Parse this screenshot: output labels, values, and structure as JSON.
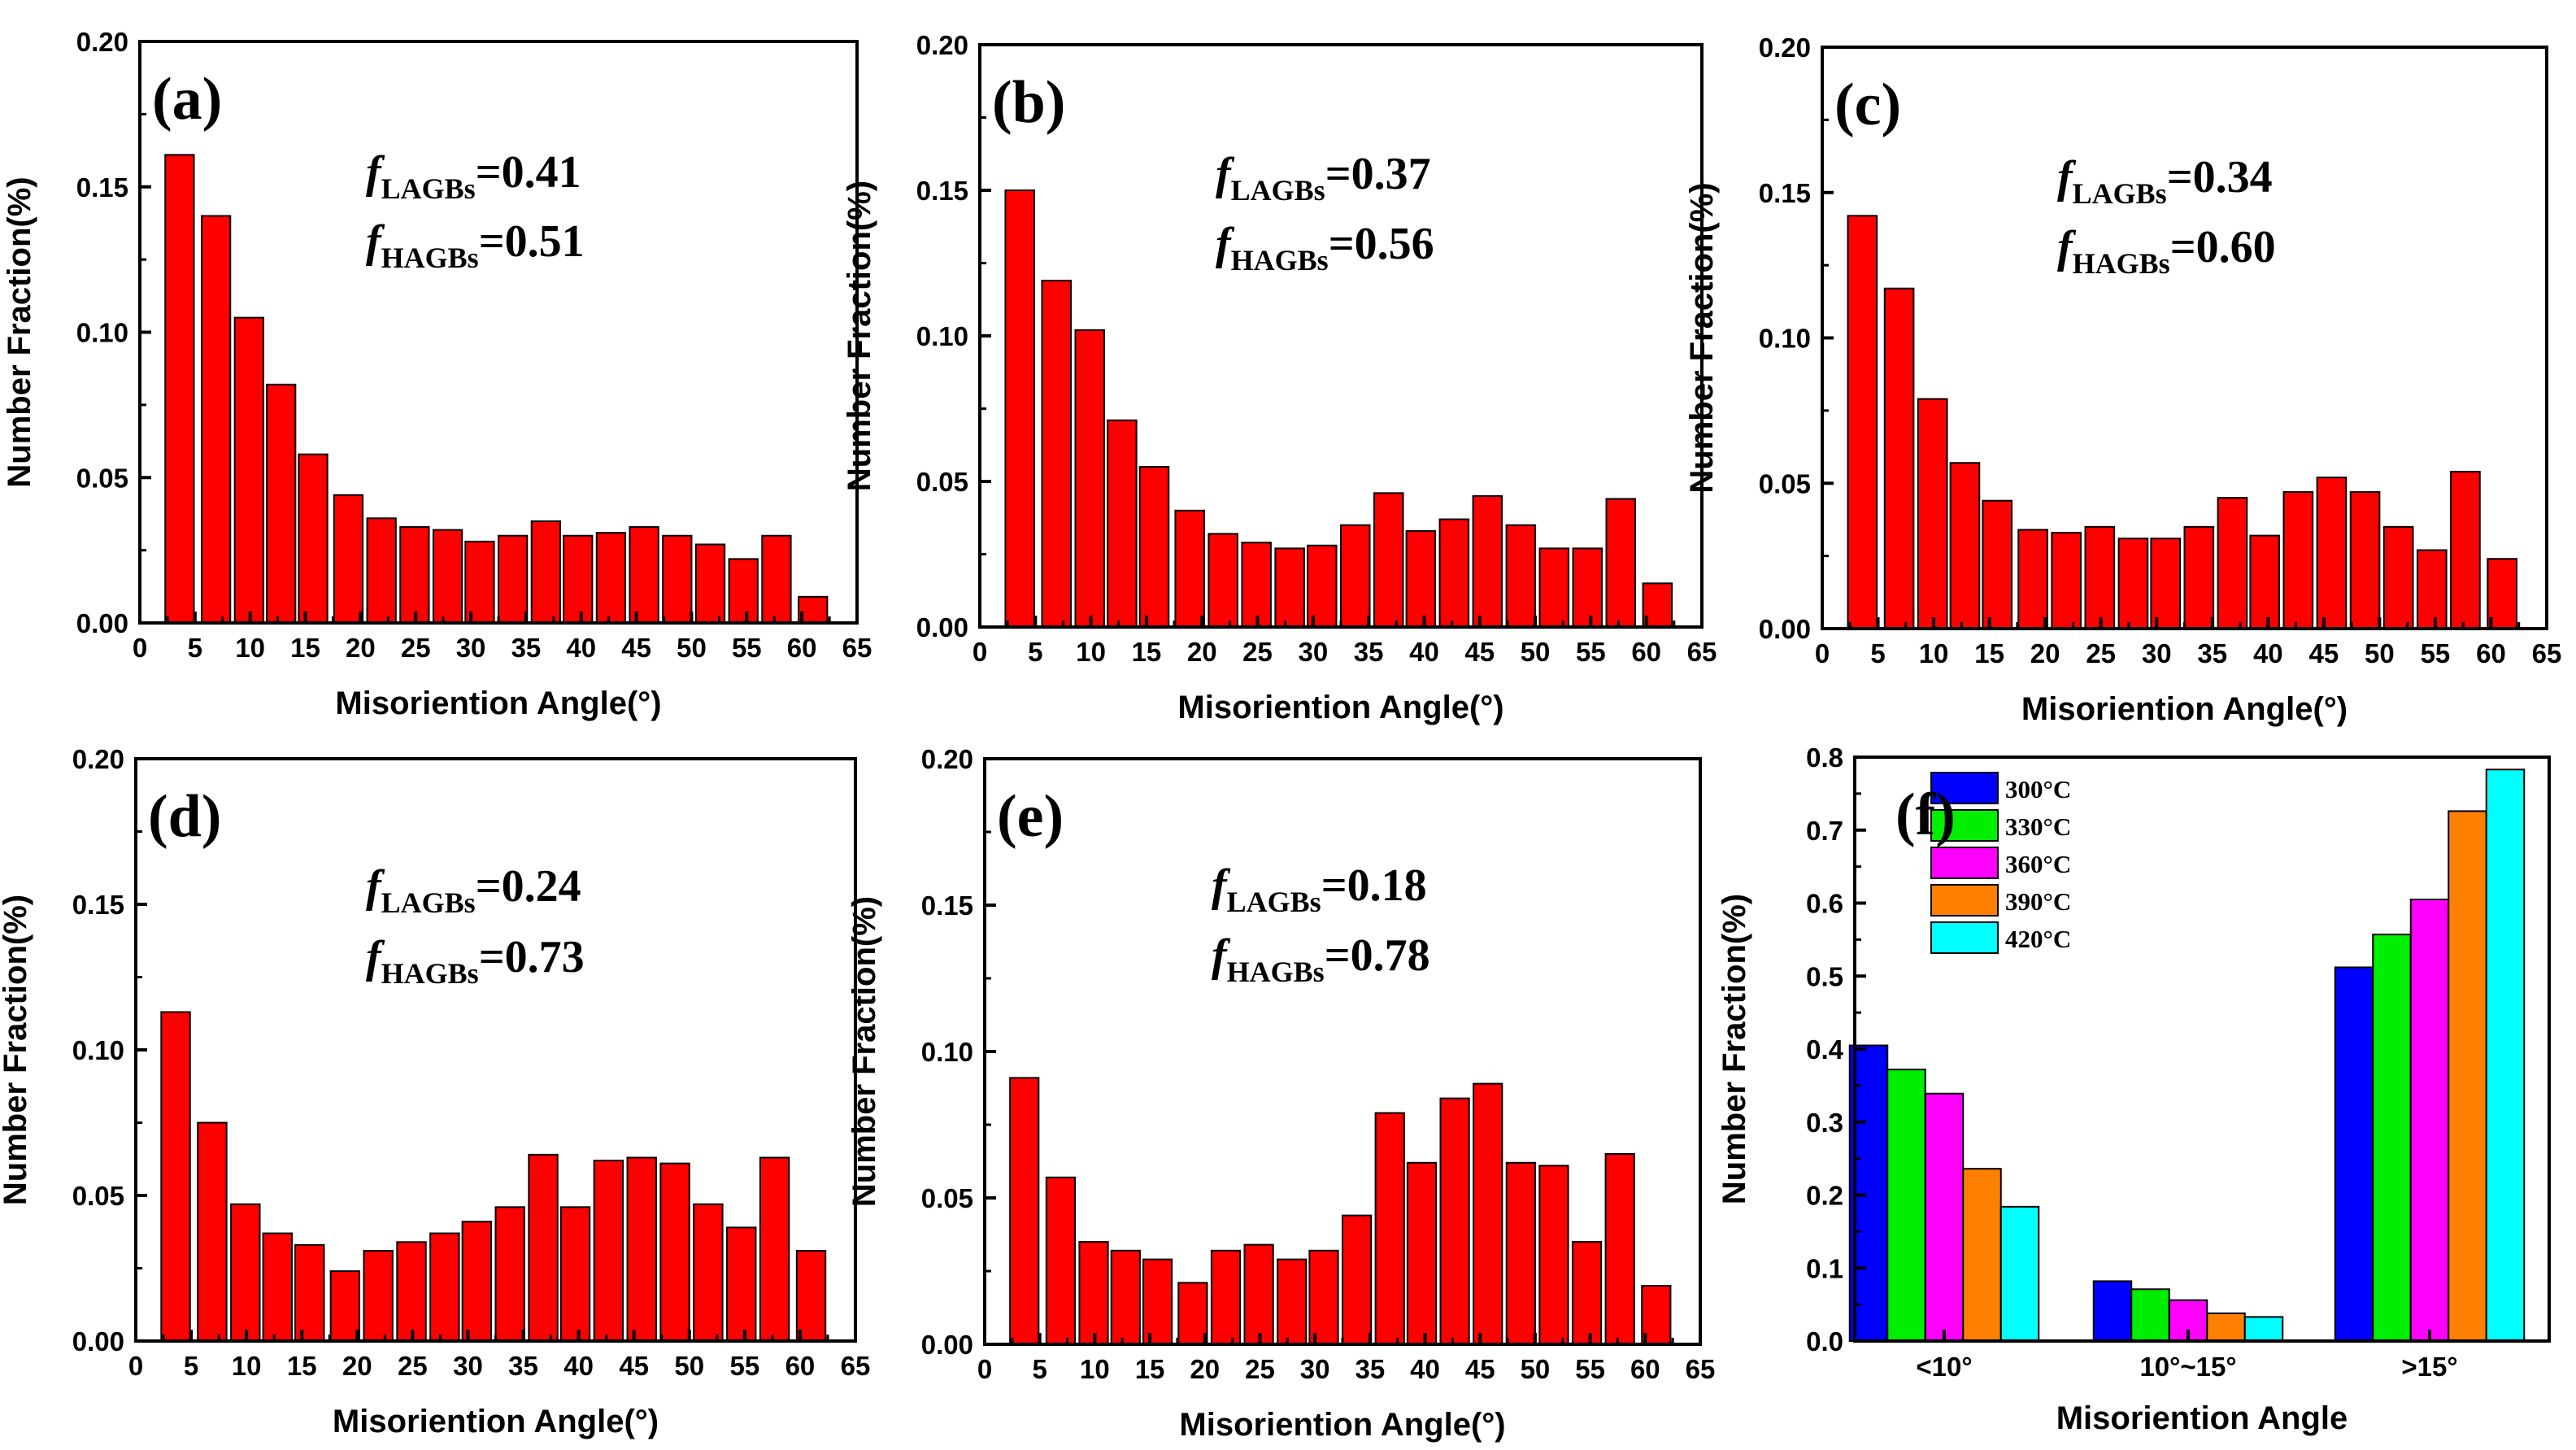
{
  "chart_data": [
    {
      "panel": "(a)",
      "type": "bar",
      "xlabel": "Misoriention Angle(°)",
      "ylabel": "Number Fraction(%)",
      "xlim": [
        0,
        65
      ],
      "ylim": [
        0,
        0.2
      ],
      "xticks": [
        "0",
        "5",
        "10",
        "15",
        "20",
        "25",
        "30",
        "35",
        "40",
        "45",
        "50",
        "55",
        "60",
        "65"
      ],
      "yticks": [
        "0.00",
        "0.05",
        "0.10",
        "0.15",
        "0.20"
      ],
      "bar_centers": [
        3.6,
        6.9,
        9.9,
        12.8,
        15.7,
        18.9,
        21.9,
        24.9,
        27.9,
        30.8,
        33.8,
        36.8,
        39.7,
        42.7,
        45.7,
        48.7,
        51.7,
        54.7,
        57.7,
        61.0
      ],
      "values": [
        0.161,
        0.14,
        0.105,
        0.082,
        0.058,
        0.044,
        0.036,
        0.033,
        0.032,
        0.028,
        0.03,
        0.035,
        0.03,
        0.031,
        0.033,
        0.03,
        0.027,
        0.022,
        0.03,
        0.009
      ],
      "color": "#FF0000",
      "annotations": {
        "lagb_label": "f",
        "lagb_sub": "LAGBs",
        "lagb_value": "=0.41",
        "hagb_label": "f",
        "hagb_sub": "HAGBs",
        "hagb_value": "=0.51"
      }
    },
    {
      "panel": "(b)",
      "type": "bar",
      "xlabel": "Misoriention Angle(°)",
      "ylabel": "Number Fraction(%)",
      "xlim": [
        0,
        65
      ],
      "ylim": [
        0,
        0.2
      ],
      "xticks": [
        "0",
        "5",
        "10",
        "15",
        "20",
        "25",
        "30",
        "35",
        "40",
        "45",
        "50",
        "55",
        "60",
        "65"
      ],
      "yticks": [
        "0.00",
        "0.05",
        "0.10",
        "0.15",
        "0.20"
      ],
      "bar_centers": [
        3.6,
        6.9,
        9.9,
        12.8,
        15.7,
        18.9,
        21.9,
        24.9,
        27.9,
        30.8,
        33.8,
        36.8,
        39.7,
        42.7,
        45.7,
        48.7,
        51.7,
        54.7,
        57.7,
        61.0
      ],
      "values": [
        0.15,
        0.119,
        0.102,
        0.071,
        0.055,
        0.04,
        0.032,
        0.029,
        0.027,
        0.028,
        0.035,
        0.046,
        0.033,
        0.037,
        0.045,
        0.035,
        0.027,
        0.027,
        0.044,
        0.015
      ],
      "color": "#FF0000",
      "annotations": {
        "lagb_label": "f",
        "lagb_sub": "LAGBs",
        "lagb_value": "=0.37",
        "hagb_label": "f",
        "hagb_sub": "HAGBs",
        "hagb_value": "=0.56"
      }
    },
    {
      "panel": "(c)",
      "type": "bar",
      "xlabel": "Misoriention Angle(°)",
      "ylabel": "Number Fraction(%)",
      "xlim": [
        0,
        65
      ],
      "ylim": [
        0,
        0.2
      ],
      "xticks": [
        "0",
        "5",
        "10",
        "15",
        "20",
        "25",
        "30",
        "35",
        "40",
        "45",
        "50",
        "55",
        "60",
        "65"
      ],
      "yticks": [
        "0.00",
        "0.05",
        "0.10",
        "0.15",
        "0.20"
      ],
      "bar_centers": [
        3.6,
        6.9,
        9.9,
        12.8,
        15.7,
        18.9,
        21.9,
        24.9,
        27.9,
        30.8,
        33.8,
        36.8,
        39.7,
        42.7,
        45.7,
        48.7,
        51.7,
        54.7,
        57.7,
        61.0
      ],
      "values": [
        0.142,
        0.117,
        0.079,
        0.057,
        0.044,
        0.034,
        0.033,
        0.035,
        0.031,
        0.031,
        0.035,
        0.045,
        0.032,
        0.047,
        0.052,
        0.047,
        0.035,
        0.027,
        0.054,
        0.024
      ],
      "color": "#FF0000",
      "annotations": {
        "lagb_label": "f",
        "lagb_sub": "LAGBs",
        "lagb_value": "=0.34",
        "hagb_label": "f",
        "hagb_sub": "HAGBs",
        "hagb_value": "=0.60"
      }
    },
    {
      "panel": "(d)",
      "type": "bar",
      "xlabel": "Misoriention Angle(°)",
      "ylabel": "Number Fraction(%)",
      "xlim": [
        0,
        65
      ],
      "ylim": [
        0,
        0.2
      ],
      "xticks": [
        "0",
        "5",
        "10",
        "15",
        "20",
        "25",
        "30",
        "35",
        "40",
        "45",
        "50",
        "55",
        "60",
        "65"
      ],
      "yticks": [
        "0.00",
        "0.05",
        "0.10",
        "0.15",
        "0.20"
      ],
      "bar_centers": [
        3.6,
        6.9,
        9.9,
        12.8,
        15.7,
        18.9,
        21.9,
        24.9,
        27.9,
        30.8,
        33.8,
        36.8,
        39.7,
        42.7,
        45.7,
        48.7,
        51.7,
        54.7,
        57.7,
        61.0
      ],
      "values": [
        0.113,
        0.075,
        0.047,
        0.037,
        0.033,
        0.024,
        0.031,
        0.034,
        0.037,
        0.041,
        0.046,
        0.064,
        0.046,
        0.062,
        0.063,
        0.061,
        0.047,
        0.039,
        0.063,
        0.031
      ],
      "color": "#FF0000",
      "annotations": {
        "lagb_label": "f",
        "lagb_sub": "LAGBs",
        "lagb_value": "=0.24",
        "hagb_label": "f",
        "hagb_sub": "HAGBs",
        "hagb_value": "=0.73"
      }
    },
    {
      "panel": "(e)",
      "type": "bar",
      "xlabel": "Misoriention Angle(°)",
      "ylabel": "Number Fraction(%)",
      "xlim": [
        0,
        65
      ],
      "ylim": [
        0,
        0.2
      ],
      "xticks": [
        "0",
        "5",
        "10",
        "15",
        "20",
        "25",
        "30",
        "35",
        "40",
        "45",
        "50",
        "55",
        "60",
        "65"
      ],
      "yticks": [
        "0.00",
        "0.05",
        "0.10",
        "0.15",
        "0.20"
      ],
      "bar_centers": [
        3.6,
        6.9,
        9.9,
        12.8,
        15.7,
        18.9,
        21.9,
        24.9,
        27.9,
        30.8,
        33.8,
        36.8,
        39.7,
        42.7,
        45.7,
        48.7,
        51.7,
        54.7,
        57.7,
        61.0
      ],
      "values": [
        0.091,
        0.057,
        0.035,
        0.032,
        0.029,
        0.021,
        0.032,
        0.034,
        0.029,
        0.032,
        0.044,
        0.079,
        0.062,
        0.084,
        0.089,
        0.062,
        0.061,
        0.035,
        0.065,
        0.02
      ],
      "color": "#FF0000",
      "annotations": {
        "lagb_label": "f",
        "lagb_sub": "LAGBs",
        "lagb_value": "=0.18",
        "hagb_label": "f",
        "hagb_sub": "HAGBs",
        "hagb_value": "=0.78"
      }
    },
    {
      "panel": "(f)",
      "type": "bar",
      "xlabel": "Misoriention Angle",
      "ylabel": "Number Fraction(%)",
      "ylim": [
        0,
        0.8
      ],
      "yticks": [
        "0.0",
        "0.1",
        "0.2",
        "0.3",
        "0.4",
        "0.5",
        "0.6",
        "0.7",
        "0.8"
      ],
      "categories": [
        "<10°",
        "10°~15°",
        ">15°"
      ],
      "legend_position": "top-left",
      "series": [
        {
          "name": "300°C",
          "color": "#0000FF",
          "values": [
            0.405,
            0.082,
            0.512
          ]
        },
        {
          "name": "330°C",
          "color": "#00EE00",
          "values": [
            0.372,
            0.071,
            0.557
          ]
        },
        {
          "name": "360°C",
          "color": "#FF00FF",
          "values": [
            0.339,
            0.056,
            0.605
          ]
        },
        {
          "name": "390°C",
          "color": "#FF8000",
          "values": [
            0.236,
            0.038,
            0.726
          ]
        },
        {
          "name": "420°C",
          "color": "#00FFFF",
          "values": [
            0.184,
            0.033,
            0.783
          ]
        }
      ]
    }
  ]
}
